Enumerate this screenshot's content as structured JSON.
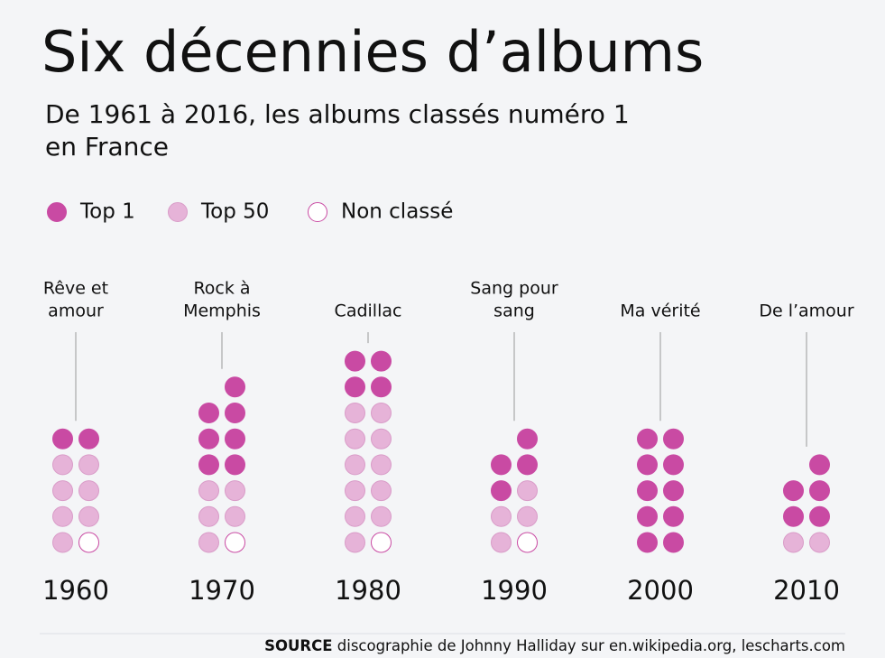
{
  "chart_data": {
    "type": "waffle",
    "title": "Six décennies d’albums",
    "subtitle": [
      "De 1961 à 2016, les albums classés numéro 1",
      "en France"
    ],
    "categories": [
      "1960",
      "1970",
      "1980",
      "1990",
      "2000",
      "2010"
    ],
    "annotations": [
      [
        "Rêve et",
        "amour"
      ],
      [
        "Rock à",
        "Memphis"
      ],
      [
        "Cadillac"
      ],
      [
        "Sang pour",
        "sang"
      ],
      [
        "Ma vérité"
      ],
      [
        "De l’amour"
      ]
    ],
    "series": [
      {
        "name": "Top 1",
        "color": "#c94aa3",
        "values": [
          2,
          7,
          4,
          4,
          10,
          5
        ]
      },
      {
        "name": "Top 50",
        "color": "#e6b3d8",
        "values": [
          7,
          5,
          11,
          4,
          0,
          2
        ]
      },
      {
        "name": "Non classé",
        "color": "#ffffff",
        "values": [
          1,
          1,
          1,
          1,
          0,
          0
        ]
      }
    ],
    "source_label": "SOURCE",
    "source_text": "discographie de Johnny Halliday sur en.wikipedia.org, lescharts.com"
  }
}
